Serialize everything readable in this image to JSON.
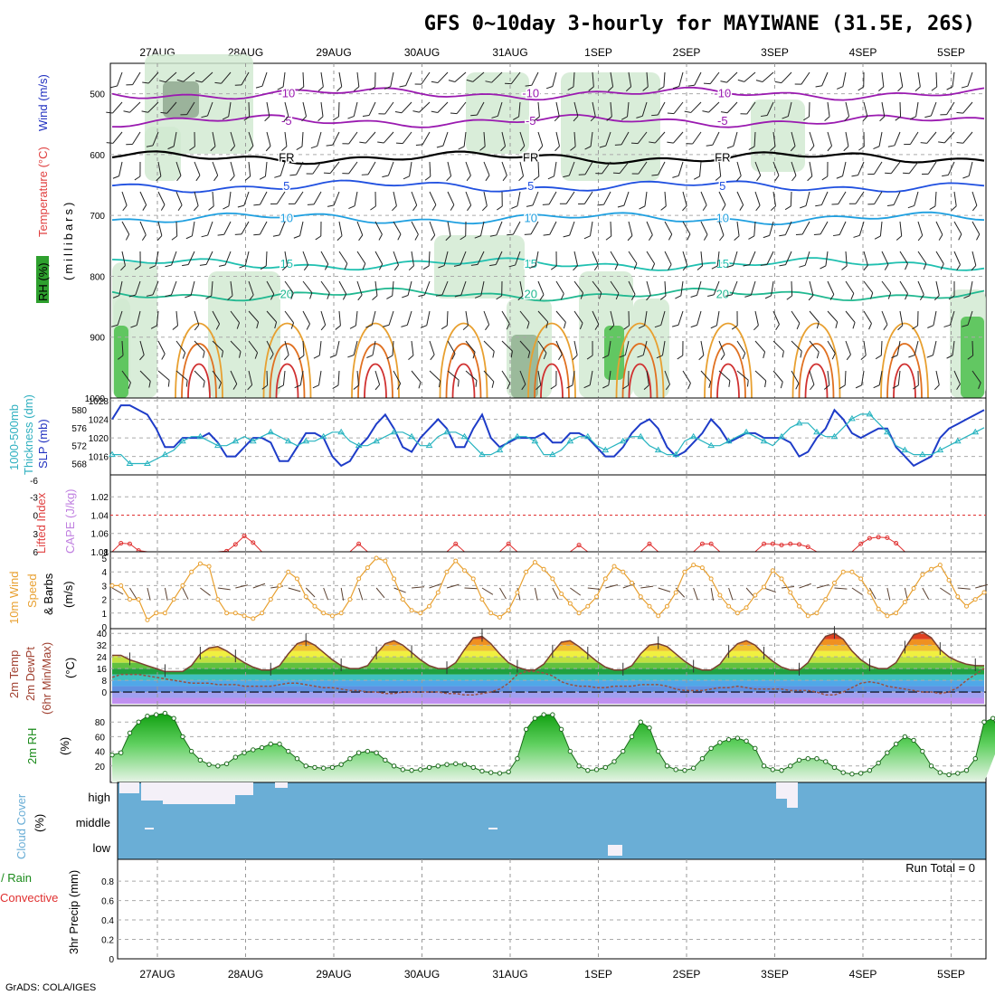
{
  "title": "GFS 0~10day 3-hourly for MAYIWANE (31.5E, 26S)",
  "footer": "GrADS: COLA/IGES",
  "run_total": "Run Total = 0",
  "dates": [
    "27AUG",
    "28AUG",
    "29AUG",
    "30AUG",
    "31AUG",
    "1SEP",
    "2SEP",
    "3SEP",
    "4SEP",
    "5SEP"
  ],
  "labels": {
    "p1_wind": "Wind (m/s)",
    "p1_temp": "Temperature (°C)",
    "p1_rh": "RH (%)",
    "p1_mb": "(millibars)",
    "p2_thick": "1000-500mb",
    "p2_thick2": "Thickness (dm)",
    "p2_slp": "SLP (mb)",
    "p3_li": "Lifted Index",
    "p3_cape": "CAPE (J/kg)",
    "p4_a": "10m Wind",
    "p4_b": "Speed",
    "p4_c": "& Barbs",
    "p4_d": "(m/s)",
    "p5_a": "2m Temp",
    "p5_b": "2m DewPt",
    "p5_c": "(6hr Min/Max)",
    "p5_d": "(°C)",
    "p6_a": "2m RH",
    "p6_b": "(%)",
    "p7_a": "Cloud Cover",
    "p7_b": "(%)",
    "p8_a": "Total / Rain",
    "p8_b": "Convective",
    "p8_c": "3hr Precip (mm)"
  },
  "colors": {
    "slp": "#1e3cc8",
    "thickness": "#28b4c0",
    "lifted_index": "#e03030",
    "cape": "#c080e0",
    "wind_speed": "#e8a030",
    "temp_line": "#7a4030",
    "dewpt": "#9a5040",
    "rh": "#1a8a1a",
    "cloud": "#6aaed6",
    "cloud_clear": "#f4f0f8"
  },
  "chart_data": [
    {
      "panel": "upper-air",
      "type": "heatmap",
      "ylabel": "(millibars)",
      "y_ticks": [
        500,
        600,
        700,
        800,
        900,
        1000
      ],
      "ylim": [
        1000,
        450
      ],
      "contours": [
        {
          "label": "-10",
          "mb": 500,
          "color": "#9a1ab0"
        },
        {
          "label": "-5",
          "mb": 545,
          "color": "#9a1ab0"
        },
        {
          "label": "FR",
          "mb": 605,
          "color": "#000000"
        },
        {
          "label": "5",
          "mb": 652,
          "color": "#2050e0"
        },
        {
          "label": "10",
          "mb": 705,
          "color": "#20a0e0"
        },
        {
          "label": "15",
          "mb": 780,
          "color": "#20c0b0"
        },
        {
          "label": "20",
          "mb": 830,
          "color": "#20b890"
        }
      ]
    },
    {
      "panel": "slp-thickness",
      "type": "line",
      "y_ticks_slp": [
        1016,
        1020,
        1024,
        1028
      ],
      "y_ticks_thick": [
        568,
        572,
        576,
        580
      ],
      "series": [
        {
          "name": "SLP (mb)",
          "values": [
            1024,
            1027,
            1027,
            1026,
            1025,
            1022,
            1018,
            1018,
            1020,
            1020,
            1020,
            1021,
            1019,
            1016,
            1016,
            1018,
            1020,
            1020,
            1019,
            1015,
            1015,
            1018,
            1021,
            1021,
            1020,
            1016,
            1014,
            1015,
            1018,
            1020,
            1023,
            1025,
            1022,
            1018,
            1017,
            1020,
            1022,
            1024,
            1022,
            1018,
            1018,
            1022,
            1025,
            1020,
            1018,
            1019,
            1020,
            1020,
            1020,
            1021,
            1019,
            1019,
            1021,
            1021,
            1020,
            1018,
            1016,
            1016,
            1018,
            1021,
            1023,
            1024,
            1022,
            1018,
            1016,
            1017,
            1019,
            1021,
            1024,
            1022,
            1019,
            1020,
            1021,
            1021,
            1020,
            1020,
            1020,
            1019,
            1016,
            1017,
            1020,
            1022,
            1026,
            1024,
            1021,
            1020,
            1021,
            1022,
            1022,
            1018,
            1016,
            1014,
            1015,
            1016,
            1020,
            1022,
            1023,
            1024,
            1025,
            1026
          ]
        },
        {
          "name": "Thickness (dm)",
          "values": [
            570,
            570,
            568,
            568,
            568,
            569,
            570,
            571,
            573,
            574,
            574,
            573,
            572,
            572,
            573,
            574,
            573,
            574,
            575,
            574,
            573,
            572,
            573,
            573,
            574,
            575,
            575,
            573,
            572,
            572,
            573,
            574,
            575,
            575,
            574,
            572,
            572,
            574,
            575,
            575,
            574,
            572,
            570,
            570,
            571,
            573,
            574,
            574,
            573,
            570,
            570,
            571,
            573,
            574,
            574,
            572,
            571,
            572,
            573,
            574,
            574,
            572,
            571,
            570,
            570,
            573,
            574,
            573,
            572,
            572,
            573,
            574,
            575,
            574,
            573,
            572,
            574,
            576,
            577,
            577,
            575,
            574,
            574,
            576,
            578,
            579,
            579,
            577,
            575,
            572,
            571,
            570,
            570,
            570,
            571,
            572,
            573,
            574,
            575,
            576
          ]
        }
      ]
    },
    {
      "panel": "lifted-index-cape",
      "type": "line",
      "y_ticks_li": [
        -3,
        0,
        3,
        6
      ],
      "y_ticks_cape": [
        1.02,
        1.04,
        1.06,
        1.08
      ],
      "series": [
        {
          "name": "Lifted Index",
          "values": [
            6,
            4.6,
            4.7,
            5.8,
            6,
            6,
            6,
            6,
            6,
            6,
            6,
            6,
            6,
            5.9,
            4.8,
            3.4,
            4.5,
            6,
            6,
            6,
            6,
            6,
            6,
            6,
            6,
            6,
            6,
            6,
            4.7,
            6,
            6,
            6,
            6,
            6,
            6,
            6,
            6,
            6,
            6,
            4.7,
            6,
            6,
            6,
            6,
            6,
            4.7,
            6,
            6,
            6,
            6,
            6,
            6,
            6,
            4.9,
            6,
            6,
            6,
            6,
            6,
            6,
            6,
            4.7,
            6,
            6,
            6,
            6,
            6,
            4.7,
            4.7,
            6,
            6,
            6,
            6,
            6,
            4.7,
            4.7,
            4.9,
            4.7,
            4.8,
            5.2,
            6,
            6,
            6,
            6,
            6,
            4.7,
            3.8,
            3.6,
            3.7,
            4.6,
            6,
            6,
            6,
            6,
            6,
            6,
            6,
            6,
            6,
            6
          ]
        }
      ]
    },
    {
      "panel": "10m-wind",
      "type": "line",
      "y_ticks": [
        0,
        1,
        2,
        3,
        4,
        5
      ],
      "series": [
        {
          "name": "Speed",
          "values": [
            3,
            3,
            2,
            2,
            0.5,
            1,
            1,
            2,
            3,
            4,
            4.6,
            4.4,
            2,
            1,
            1,
            0.8,
            0.6,
            1,
            2,
            3,
            4,
            3.5,
            2.2,
            1.5,
            1,
            0.8,
            1,
            2,
            3.5,
            4.3,
            5,
            4.8,
            3.5,
            2,
            1.2,
            1,
            1.5,
            2.5,
            4,
            4.8,
            4.1,
            3.5,
            2,
            1,
            0.7,
            1.2,
            2.5,
            4,
            4.7,
            4.2,
            3.5,
            2.4,
            1.7,
            1,
            1.5,
            2.2,
            3.5,
            4.4,
            4,
            3.2,
            2.2,
            1.5,
            0.8,
            1.5,
            2.5,
            4,
            4.5,
            4.3,
            3.5,
            2.3,
            1.5,
            1,
            1.4,
            2.3,
            2.9,
            4.1,
            3.5,
            2.5,
            1.5,
            0.8,
            1,
            2,
            3.2,
            4,
            4,
            3.5,
            2.5,
            1.3,
            0.8,
            1,
            1.8,
            2.8,
            3.8,
            4.2,
            4.5,
            3.4,
            2.2,
            1.5,
            2,
            2.5
          ]
        }
      ]
    },
    {
      "panel": "2m-temp",
      "type": "area",
      "y_ticks": [
        0,
        8,
        16,
        24,
        32,
        40
      ],
      "series": [
        {
          "name": "2m Temp",
          "values": [
            25,
            25,
            22,
            20,
            18,
            16,
            14,
            14,
            14,
            18,
            26,
            30,
            31,
            28,
            24,
            20,
            17,
            15,
            15,
            18,
            26,
            33,
            35,
            32,
            27,
            22,
            18,
            16,
            16,
            18,
            26,
            33,
            35,
            32,
            27,
            22,
            18,
            16,
            16,
            20,
            29,
            37,
            38,
            33,
            26,
            20,
            17,
            15,
            15,
            19,
            27,
            34,
            35,
            31,
            26,
            21,
            17,
            15,
            15,
            18,
            26,
            32,
            33,
            31,
            26,
            21,
            17,
            15,
            15,
            19,
            27,
            33,
            35,
            32,
            26,
            21,
            17,
            15,
            15,
            20,
            30,
            38,
            40,
            36,
            28,
            22,
            18,
            16,
            16,
            20,
            30,
            39,
            41,
            37,
            29,
            24,
            21,
            19,
            18,
            18
          ]
        },
        {
          "name": "2m DewPt",
          "values": [
            10,
            12,
            12,
            12,
            11,
            10,
            9,
            8,
            7,
            6,
            6,
            6,
            5,
            5,
            5,
            4,
            4,
            4,
            4,
            5,
            6,
            6,
            5,
            4,
            3,
            3,
            2,
            1,
            1,
            0,
            0,
            -1,
            -1,
            0,
            0,
            0,
            0,
            0,
            -1,
            -1,
            -2,
            -2,
            -1,
            0,
            2,
            6,
            12,
            14,
            14,
            13,
            11,
            7,
            5,
            4,
            4,
            3,
            3,
            4,
            4,
            4,
            5,
            5,
            5,
            4,
            2,
            1,
            1,
            1,
            2,
            3,
            3,
            4,
            3,
            2,
            2,
            2,
            2,
            1,
            1,
            1,
            0,
            -2,
            -2,
            0,
            3,
            6,
            7,
            6,
            4,
            3,
            2,
            1,
            0,
            0,
            -1,
            0,
            3,
            8,
            12,
            16
          ]
        }
      ]
    },
    {
      "panel": "2m-rh",
      "type": "area",
      "y_ticks": [
        20,
        40,
        60,
        80
      ],
      "series": [
        {
          "name": "2m RH",
          "values": [
            35,
            38,
            65,
            80,
            88,
            90,
            92,
            85,
            60,
            40,
            28,
            22,
            20,
            23,
            32,
            38,
            42,
            45,
            50,
            50,
            40,
            30,
            20,
            18,
            17,
            18,
            22,
            30,
            38,
            40,
            38,
            28,
            20,
            15,
            14,
            15,
            18,
            20,
            22,
            23,
            22,
            18,
            13,
            11,
            10,
            12,
            30,
            70,
            85,
            90,
            90,
            70,
            40,
            20,
            14,
            15,
            18,
            26,
            40,
            60,
            80,
            72,
            40,
            20,
            15,
            14,
            17,
            30,
            44,
            52,
            56,
            58,
            54,
            44,
            20,
            15,
            14,
            20,
            28,
            30,
            30,
            26,
            18,
            11,
            9,
            10,
            14,
            24,
            38,
            50,
            60,
            55,
            40,
            20,
            11,
            8,
            10,
            14,
            30,
            80,
            85,
            60
          ]
        }
      ]
    },
    {
      "panel": "cloud-cover",
      "type": "table",
      "rows": [
        "high",
        "middle",
        "low"
      ]
    },
    {
      "panel": "precip",
      "type": "bar",
      "y_ticks": [
        0,
        0.2,
        0.4,
        0.6,
        0.8
      ],
      "values": []
    }
  ]
}
